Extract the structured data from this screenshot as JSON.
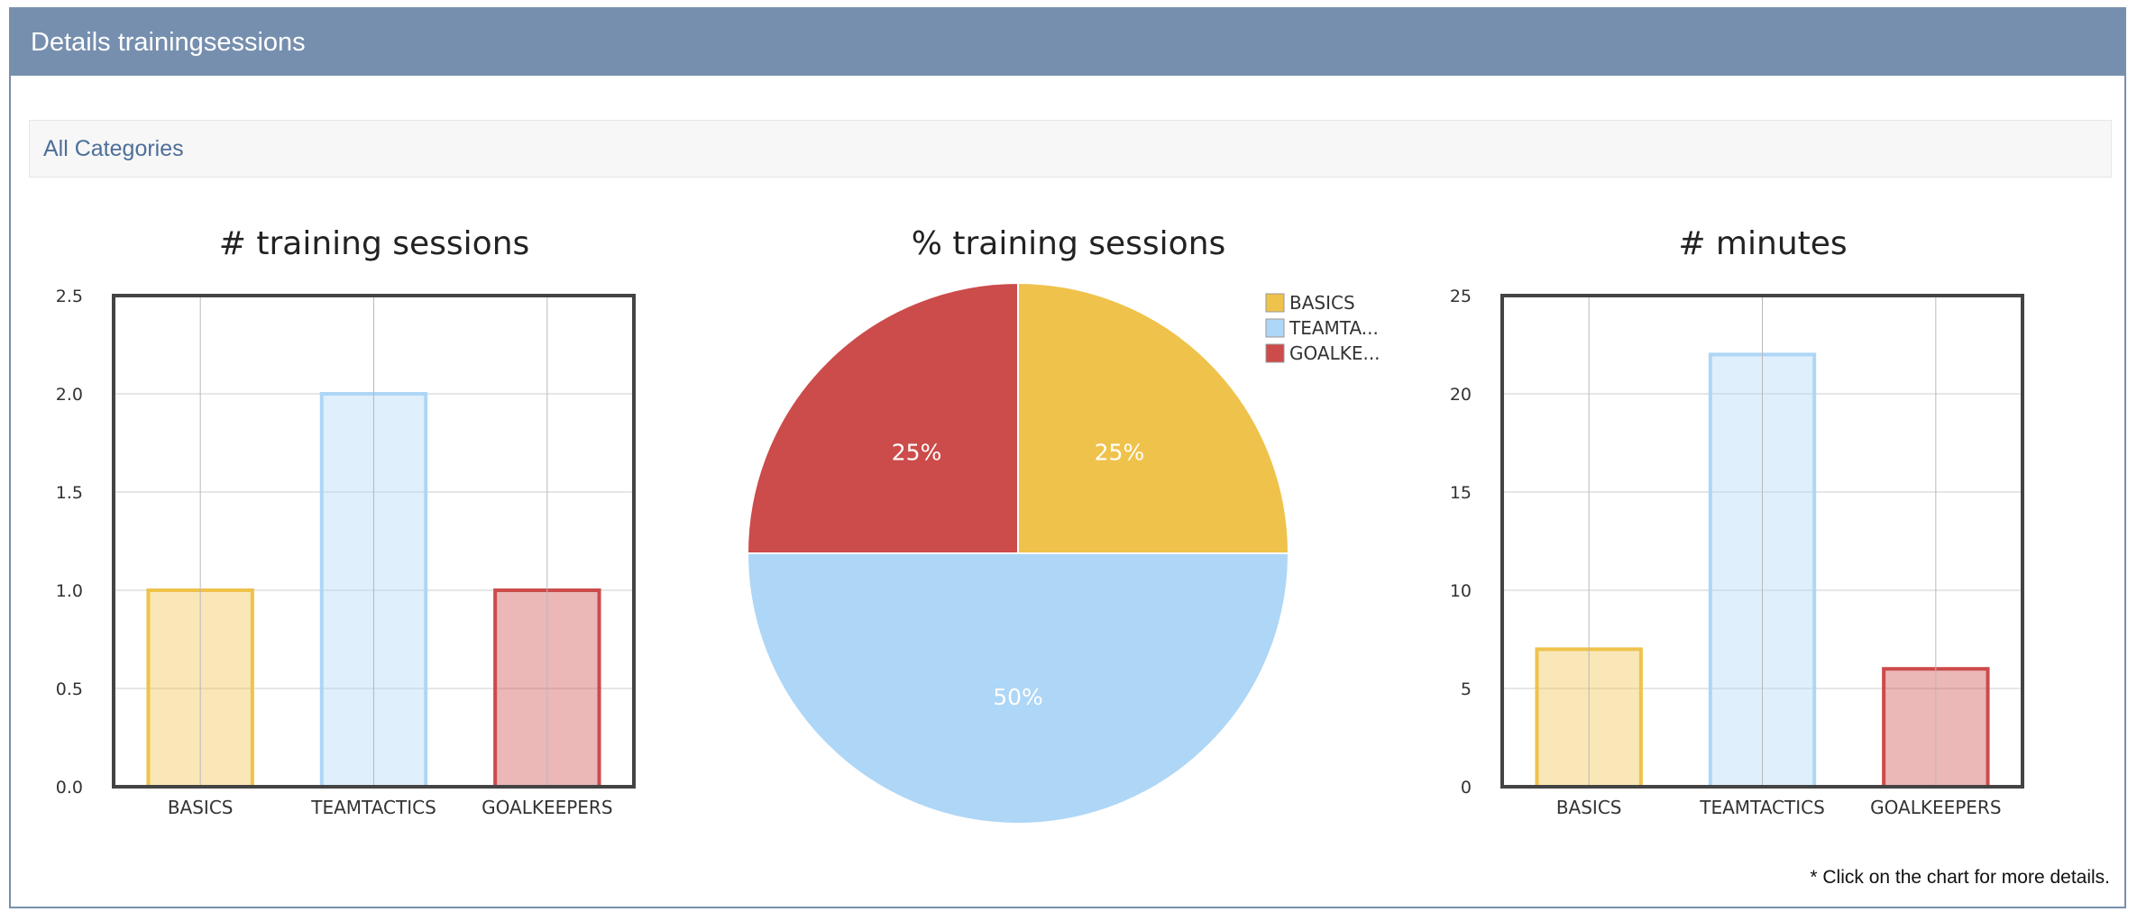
{
  "panel": {
    "title": "Details trainingsessions"
  },
  "filter": {
    "label": "All Categories"
  },
  "footnote": "* Click on the chart for more details.",
  "colors": {
    "basics": "#efc24b",
    "teamtactics": "#aed6f6",
    "goalkeepers": "#cc4b4b"
  },
  "chart_data": [
    {
      "type": "bar",
      "title": "# training sessions",
      "categories": [
        "BASICS",
        "TEAMTACTICS",
        "GOALKEEPERS"
      ],
      "values": [
        1,
        2,
        1
      ],
      "ylim": [
        0,
        2.5
      ],
      "yticks": [
        "0.0",
        "0.5",
        "1.0",
        "1.5",
        "2.0",
        "2.5"
      ],
      "grid": true
    },
    {
      "type": "pie",
      "title": "% training sessions",
      "labels": [
        "BASICS",
        "TEAMTA...",
        "GOALKE..."
      ],
      "values": [
        25,
        50,
        25
      ],
      "value_labels": [
        "25%",
        "50%",
        "25%"
      ],
      "legend": "top-right"
    },
    {
      "type": "bar",
      "title": "# minutes",
      "categories": [
        "BASICS",
        "TEAMTACTICS",
        "GOALKEEPERS"
      ],
      "values": [
        7,
        22,
        6
      ],
      "ylim": [
        0,
        25
      ],
      "yticks": [
        "0",
        "5",
        "10",
        "15",
        "20",
        "25"
      ],
      "grid": true
    }
  ]
}
